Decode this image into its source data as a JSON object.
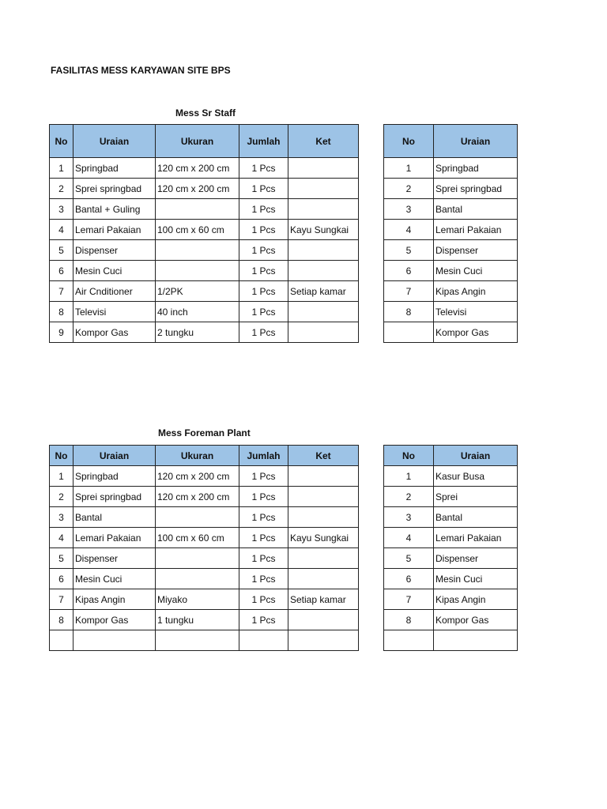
{
  "title": "FASILITAS MESS KARYAWAN SITE BPS",
  "header_color": "#9dc3e6",
  "columns_main": [
    "No",
    "Uraian",
    "Ukuran",
    "Jumlah",
    "Ket"
  ],
  "columns_side": [
    "No",
    "Uraian"
  ],
  "sections": [
    {
      "title": "Mess Sr Staff",
      "main_rows": [
        [
          "1",
          "Springbad",
          "120 cm x 200 cm",
          "1 Pcs",
          ""
        ],
        [
          "2",
          "Sprei springbad",
          "120 cm x 200 cm",
          "1 Pcs",
          ""
        ],
        [
          "3",
          "Bantal + Guling",
          "",
          "1 Pcs",
          ""
        ],
        [
          "4",
          "Lemari Pakaian",
          "100 cm x 60 cm",
          "1 Pcs",
          "Kayu Sungkai"
        ],
        [
          "5",
          "Dispenser",
          "",
          "1 Pcs",
          ""
        ],
        [
          "6",
          "Mesin Cuci",
          "",
          "1 Pcs",
          ""
        ],
        [
          "7",
          "Air Cnditioner",
          "1/2PK",
          "1 Pcs",
          "Setiap kamar"
        ],
        [
          "8",
          "Televisi",
          "40 inch",
          "1 Pcs",
          ""
        ],
        [
          "9",
          "Kompor Gas",
          "2 tungku",
          "1 Pcs",
          ""
        ]
      ],
      "side_rows": [
        [
          "1",
          "Springbad"
        ],
        [
          "2",
          "Sprei springbad"
        ],
        [
          "3",
          "Bantal"
        ],
        [
          "4",
          "Lemari Pakaian"
        ],
        [
          "5",
          "Dispenser"
        ],
        [
          "6",
          "Mesin Cuci"
        ],
        [
          "7",
          "Kipas Angin"
        ],
        [
          "8",
          "Televisi"
        ],
        [
          "",
          "Kompor Gas"
        ]
      ]
    },
    {
      "title": "Mess Foreman Plant",
      "main_rows": [
        [
          "1",
          "Springbad",
          "120 cm x 200 cm",
          "1 Pcs",
          ""
        ],
        [
          "2",
          "Sprei springbad",
          "120 cm x 200 cm",
          "1 Pcs",
          ""
        ],
        [
          "3",
          "Bantal",
          "",
          "1 Pcs",
          ""
        ],
        [
          "4",
          "Lemari Pakaian",
          "100 cm x 60 cm",
          "1 Pcs",
          "Kayu Sungkai"
        ],
        [
          "5",
          "Dispenser",
          "",
          "1 Pcs",
          ""
        ],
        [
          "6",
          "Mesin Cuci",
          "",
          "1 Pcs",
          ""
        ],
        [
          "7",
          "Kipas Angin",
          "Miyako",
          "1 Pcs",
          "Setiap kamar"
        ],
        [
          "8",
          "Kompor Gas",
          "1 tungku",
          "1 Pcs",
          ""
        ],
        [
          "",
          "",
          "",
          "",
          ""
        ]
      ],
      "side_rows": [
        [
          "1",
          "Kasur Busa"
        ],
        [
          "2",
          "Sprei"
        ],
        [
          "3",
          "Bantal"
        ],
        [
          "4",
          "Lemari Pakaian"
        ],
        [
          "5",
          "Dispenser"
        ],
        [
          "6",
          "Mesin Cuci"
        ],
        [
          "7",
          "Kipas Angin"
        ],
        [
          "8",
          "Kompor Gas"
        ],
        [
          "",
          ""
        ]
      ]
    }
  ]
}
